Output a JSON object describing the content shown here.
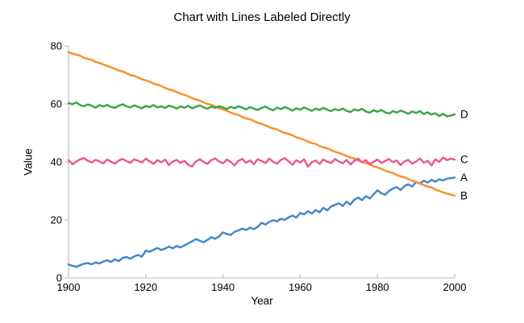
{
  "chart_data": {
    "type": "line",
    "title": "Chart with Lines Labeled Directly",
    "xlabel": "Year",
    "ylabel": "Value",
    "xlim": [
      1900,
      2000
    ],
    "ylim": [
      0,
      80
    ],
    "x_ticks": [
      1900,
      1920,
      1940,
      1960,
      1980,
      2000
    ],
    "y_ticks": [
      0,
      20,
      40,
      60,
      80
    ],
    "grid": false,
    "legend_position": "direct-labels-right-of-line-ends",
    "axis_color": "#c6c6c6",
    "x": [
      1900,
      1901,
      1902,
      1903,
      1904,
      1905,
      1906,
      1907,
      1908,
      1909,
      1910,
      1911,
      1912,
      1913,
      1914,
      1915,
      1916,
      1917,
      1918,
      1919,
      1920,
      1921,
      1922,
      1923,
      1924,
      1925,
      1926,
      1927,
      1928,
      1929,
      1930,
      1931,
      1932,
      1933,
      1934,
      1935,
      1936,
      1937,
      1938,
      1939,
      1940,
      1941,
      1942,
      1943,
      1944,
      1945,
      1946,
      1947,
      1948,
      1949,
      1950,
      1951,
      1952,
      1953,
      1954,
      1955,
      1956,
      1957,
      1958,
      1959,
      1960,
      1961,
      1962,
      1963,
      1964,
      1965,
      1966,
      1967,
      1968,
      1969,
      1970,
      1971,
      1972,
      1973,
      1974,
      1975,
      1976,
      1977,
      1978,
      1979,
      1980,
      1981,
      1982,
      1983,
      1984,
      1985,
      1986,
      1987,
      1988,
      1989,
      1990,
      1991,
      1992,
      1993,
      1994,
      1995,
      1996,
      1997,
      1998,
      1999,
      2000
    ],
    "series": [
      {
        "name": "A",
        "color": "#4589C8",
        "values": [
          4.6,
          4.2,
          3.8,
          4.4,
          4.9,
          5.1,
          4.7,
          5.3,
          5.0,
          5.6,
          6.1,
          5.5,
          6.4,
          5.8,
          6.9,
          7.2,
          6.6,
          7.4,
          7.9,
          7.3,
          9.4,
          9.0,
          9.7,
          10.3,
          9.6,
          10.1,
          10.8,
          10.2,
          11.0,
          10.5,
          11.2,
          11.9,
          12.6,
          13.4,
          12.8,
          12.3,
          13.1,
          14.0,
          13.5,
          14.3,
          15.7,
          15.1,
          14.8,
          15.9,
          16.4,
          17.0,
          16.5,
          17.3,
          16.8,
          17.6,
          19.0,
          18.4,
          19.3,
          19.9,
          19.5,
          20.4,
          20.0,
          20.9,
          21.5,
          20.8,
          22.4,
          21.9,
          23.0,
          22.2,
          23.4,
          22.6,
          24.2,
          23.3,
          24.6,
          25.2,
          25.7,
          24.8,
          26.3,
          25.3,
          27.0,
          27.7,
          26.8,
          28.2,
          27.4,
          28.8,
          30.2,
          29.2,
          28.7,
          30.0,
          30.8,
          31.3,
          30.3,
          31.7,
          32.3,
          31.5,
          33.1,
          32.5,
          33.5,
          32.9,
          33.8,
          33.2,
          34.0,
          33.6,
          34.2,
          34.4,
          34.6
        ]
      },
      {
        "name": "B",
        "color": "#F6922E",
        "values": [
          77.9,
          77.3,
          77.0,
          76.6,
          75.9,
          75.5,
          75.2,
          74.5,
          74.1,
          73.6,
          73.1,
          72.6,
          72.1,
          71.5,
          71.2,
          70.6,
          70.0,
          69.7,
          69.1,
          68.5,
          68.1,
          67.7,
          67.0,
          66.6,
          66.2,
          65.5,
          65.0,
          64.7,
          64.1,
          63.5,
          63.1,
          62.6,
          62.0,
          61.5,
          61.2,
          60.5,
          60.0,
          59.7,
          59.1,
          58.5,
          58.1,
          57.6,
          57.0,
          56.5,
          56.2,
          55.5,
          55.0,
          54.7,
          54.1,
          53.5,
          53.1,
          52.6,
          52.0,
          51.5,
          51.2,
          50.5,
          50.0,
          49.7,
          49.1,
          48.5,
          48.1,
          47.6,
          47.0,
          46.5,
          46.2,
          45.5,
          45.0,
          44.7,
          44.1,
          43.5,
          43.1,
          42.6,
          42.0,
          41.5,
          41.2,
          40.5,
          40.0,
          39.7,
          39.1,
          38.5,
          38.1,
          37.6,
          37.0,
          36.5,
          36.2,
          35.5,
          35.0,
          34.7,
          34.1,
          33.5,
          33.1,
          32.6,
          32.0,
          31.5,
          31.2,
          30.5,
          30.0,
          29.5,
          29.1,
          28.7,
          28.4
        ]
      },
      {
        "name": "C",
        "color": "#EA5A94",
        "values": [
          40.6,
          39.2,
          40.1,
          40.9,
          41.3,
          40.4,
          39.8,
          40.7,
          40.2,
          39.5,
          40.8,
          40.1,
          39.4,
          40.5,
          41.0,
          40.3,
          39.7,
          40.9,
          40.4,
          39.8,
          41.1,
          40.2,
          39.3,
          40.6,
          39.9,
          40.8,
          38.9,
          40.1,
          40.7,
          39.6,
          40.4,
          39.0,
          38.4,
          40.2,
          40.9,
          40.0,
          39.3,
          40.6,
          41.2,
          40.1,
          39.5,
          40.8,
          40.0,
          38.8,
          40.4,
          41.0,
          39.7,
          40.5,
          39.2,
          40.9,
          40.3,
          39.6,
          41.1,
          40.0,
          39.4,
          40.7,
          41.3,
          40.2,
          39.0,
          40.6,
          39.8,
          40.9,
          38.4,
          39.9,
          40.5,
          39.3,
          40.8,
          40.1,
          39.6,
          41.0,
          40.2,
          39.5,
          40.7,
          39.1,
          40.4,
          41.1,
          39.8,
          40.6,
          39.3,
          40.0,
          40.8,
          39.6,
          40.3,
          41.0,
          39.9,
          40.5,
          38.9,
          40.2,
          40.7,
          39.4,
          40.1,
          41.2,
          39.7,
          40.4,
          38.8,
          40.9,
          40.0,
          41.5,
          40.6,
          41.1,
          40.8
        ]
      },
      {
        "name": "D",
        "color": "#41A448",
        "values": [
          60.3,
          59.9,
          60.5,
          59.6,
          59.2,
          59.8,
          59.4,
          58.7,
          59.6,
          59.1,
          59.7,
          59.0,
          58.6,
          59.4,
          59.9,
          59.2,
          58.8,
          59.5,
          59.0,
          58.5,
          59.3,
          58.9,
          59.6,
          58.8,
          59.2,
          58.6,
          59.4,
          59.0,
          58.4,
          59.1,
          58.7,
          59.3,
          58.5,
          59.0,
          59.5,
          58.8,
          58.3,
          59.1,
          58.6,
          59.2,
          58.8,
          58.2,
          59.0,
          58.5,
          59.2,
          58.7,
          58.1,
          58.9,
          58.4,
          57.9,
          58.6,
          59.1,
          58.3,
          57.8,
          58.7,
          58.2,
          58.9,
          58.4,
          57.7,
          58.5,
          58.0,
          58.8,
          58.2,
          57.6,
          58.4,
          57.9,
          58.6,
          58.0,
          57.5,
          58.2,
          57.8,
          58.4,
          57.6,
          57.2,
          58.1,
          57.7,
          58.3,
          57.4,
          57.0,
          57.8,
          57.3,
          57.9,
          57.1,
          56.7,
          57.5,
          57.0,
          57.7,
          57.2,
          56.6,
          57.4,
          56.9,
          57.5,
          56.5,
          57.1,
          56.3,
          56.8,
          55.8,
          56.6,
          55.7,
          56.0,
          56.4
        ]
      }
    ]
  }
}
